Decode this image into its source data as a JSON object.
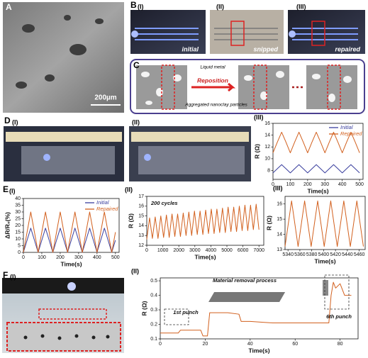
{
  "chart_data": [
    {
      "type": "line",
      "xlabel": "Time(s)",
      "ylabel": "R (Ω)",
      "xlim": [
        0,
        520
      ],
      "ylim": [
        6.5,
        16
      ],
      "xticks": [
        0,
        100,
        200,
        300,
        400,
        500
      ],
      "yticks": [
        8,
        10,
        12,
        14,
        16
      ],
      "legend": "upper right",
      "x": [
        0,
        25,
        50,
        75,
        100,
        125,
        150,
        175,
        200,
        225,
        250,
        275,
        300,
        325,
        350,
        375,
        400,
        425,
        450,
        475,
        500
      ],
      "series": [
        {
          "name": "Initial",
          "color": "#3a3f9e",
          "values": [
            7.6,
            8.3,
            9.0,
            8.3,
            7.6,
            8.3,
            9.0,
            8.3,
            7.6,
            8.3,
            9.0,
            8.3,
            7.6,
            8.3,
            9.0,
            8.3,
            7.6,
            8.3,
            9.0,
            8.3,
            7.6
          ]
        },
        {
          "name": "Repaired",
          "color": "#d2601e",
          "values": [
            11.0,
            12.8,
            14.5,
            12.8,
            11.0,
            12.8,
            14.5,
            12.8,
            11.0,
            12.8,
            14.5,
            12.8,
            11.0,
            12.8,
            14.5,
            12.8,
            11.0,
            12.8,
            14.5,
            12.8,
            11.0
          ]
        }
      ]
    },
    {
      "type": "line",
      "xlabel": "Time(s)",
      "ylabel": "ΔR/R₀(%)",
      "xlim": [
        0,
        520
      ],
      "ylim": [
        0,
        40
      ],
      "xticks": [
        0,
        100,
        200,
        300,
        400,
        500
      ],
      "yticks": [
        0,
        5,
        10,
        15,
        20,
        25,
        30,
        35,
        40
      ],
      "legend": "upper right",
      "x": [
        0,
        20,
        40,
        60,
        80,
        100,
        120,
        140,
        160,
        180,
        200,
        220,
        240,
        260,
        280,
        300,
        320,
        340,
        360,
        380,
        400,
        420,
        440,
        460,
        480,
        500
      ],
      "series": [
        {
          "name": "Initial",
          "color": "#3a3f9e",
          "values": [
            0,
            9,
            18,
            9,
            0,
            9,
            18,
            9,
            0,
            9,
            18,
            9,
            0,
            9,
            18,
            9,
            0,
            9,
            18,
            9,
            0,
            9,
            18,
            9,
            0,
            9
          ]
        },
        {
          "name": "Repaired",
          "color": "#d2601e",
          "values": [
            0,
            15,
            30,
            15,
            0,
            15,
            30,
            15,
            0,
            15,
            30,
            15,
            0,
            15,
            30,
            15,
            0,
            15,
            30,
            15,
            0,
            15,
            30,
            15,
            0,
            15
          ]
        }
      ]
    },
    {
      "type": "line",
      "xlabel": "Time(s)",
      "ylabel": "R (Ω)",
      "annotations": [
        "200 cycles"
      ],
      "xlim": [
        0,
        7300
      ],
      "ylim": [
        12,
        17
      ],
      "xticks": [
        0,
        1000,
        2000,
        3000,
        4000,
        5000,
        6000,
        7000
      ],
      "yticks": [
        12,
        13,
        14,
        15,
        16,
        17
      ],
      "x": [
        0,
        175,
        350,
        525,
        700,
        875,
        1050,
        1225,
        1400,
        1575,
        1750,
        1925,
        2100,
        2275,
        2450,
        2625,
        2800,
        2975,
        3150,
        3325,
        3500,
        3675,
        3850,
        4025,
        4200,
        4375,
        4550,
        4725,
        4900,
        5075,
        5250,
        5425,
        5600,
        5775,
        5950,
        6125,
        6300,
        6475,
        6650,
        6825,
        7000
      ],
      "series": [
        {
          "color": "#d2601e",
          "values": [
            12.6,
            14.8,
            12.7,
            14.9,
            12.7,
            15.0,
            12.8,
            15.1,
            12.8,
            15.2,
            12.9,
            15.2,
            12.9,
            15.3,
            13.0,
            15.4,
            13.0,
            15.5,
            13.1,
            15.5,
            13.1,
            15.6,
            13.2,
            15.7,
            13.2,
            15.7,
            13.3,
            15.8,
            13.3,
            15.9,
            13.4,
            15.9,
            13.4,
            16.0,
            13.5,
            16.1,
            13.5,
            16.1,
            13.6,
            16.2,
            13.6
          ]
        }
      ]
    },
    {
      "type": "line",
      "xlabel": "Time(s)",
      "ylabel": "R (Ω)",
      "xlim": [
        5335,
        5470
      ],
      "ylim": [
        13,
        16.5
      ],
      "xticks": [
        5340,
        5360,
        5380,
        5400,
        5420,
        5440,
        5460
      ],
      "yticks": [
        13,
        14,
        15,
        16
      ],
      "x": [
        5335,
        5340.5,
        5346,
        5351.5,
        5357,
        5362.5,
        5368,
        5373.5,
        5379,
        5384.5,
        5390,
        5395.5,
        5401,
        5406.5,
        5412,
        5417.5,
        5423,
        5428.5,
        5434,
        5439.5,
        5445,
        5450.5,
        5456,
        5461.5,
        5467
      ],
      "series": [
        {
          "color": "#d2601e",
          "values": [
            13.2,
            14.7,
            16.2,
            14.7,
            13.2,
            14.7,
            16.2,
            14.7,
            13.2,
            14.7,
            16.2,
            14.7,
            13.2,
            14.7,
            16.2,
            14.7,
            13.2,
            14.7,
            16.2,
            14.7,
            13.2,
            14.7,
            16.2,
            14.7,
            13.2
          ]
        }
      ]
    },
    {
      "type": "line",
      "xlabel": "Time(s)",
      "ylabel": "R (Ω)",
      "annotations": [
        "Material removal process",
        "1st punch",
        "6th punch"
      ],
      "xlim": [
        0,
        88
      ],
      "ylim": [
        0.1,
        0.52
      ],
      "xticks": [
        0,
        20,
        40,
        60,
        80
      ],
      "yticks": [
        0.1,
        0.2,
        0.3,
        0.4,
        0.5
      ],
      "x": [
        0,
        8,
        9,
        18,
        19,
        21,
        22,
        24,
        30,
        35,
        36,
        40,
        50,
        60,
        70,
        75,
        76,
        77,
        78,
        80,
        82,
        85
      ],
      "series": [
        {
          "color": "#d2601e",
          "values": [
            0.14,
            0.14,
            0.16,
            0.16,
            0.12,
            0.12,
            0.28,
            0.28,
            0.28,
            0.27,
            0.22,
            0.22,
            0.21,
            0.21,
            0.21,
            0.21,
            0.4,
            0.49,
            0.45,
            0.48,
            0.4,
            0.4
          ]
        }
      ]
    }
  ],
  "figure": {
    "panel_labels": [
      "A",
      "B",
      "(I)",
      "(II)",
      "(III)",
      "C",
      "D",
      "(I)",
      "(II)",
      "(III)",
      "E",
      "(I)",
      "(II)",
      "(III)",
      "F",
      "(I)",
      "(II)"
    ],
    "photo_texts": [
      "initial",
      "snipped",
      "repaired",
      "200µm",
      "Liquid metal",
      "Reposition",
      "Aggregated nanoclay particles"
    ]
  }
}
